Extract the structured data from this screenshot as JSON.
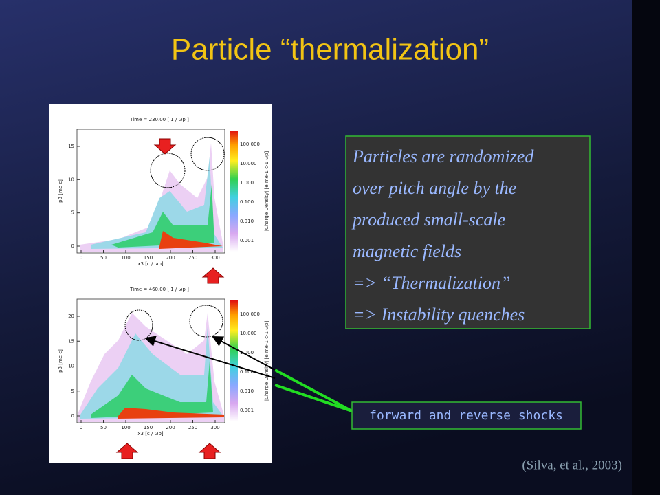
{
  "title": "Particle “thermalization”",
  "text_box": {
    "lines": [
      "Particles are randomized",
      "over pitch angle by the",
      "produced small-scale",
      "magnetic fields",
      "=> “Thermalization”",
      "=> Instability quenches"
    ]
  },
  "callout": "forward and reverse shocks",
  "citation": "(Silva, et al., 2003)",
  "figure": {
    "panels": [
      {
        "time_label": "Time = 230.00 [ 1 / ωp ]",
        "x_label": "x3 [c / ωp]",
        "y_label": "p3 [me c]",
        "colorbar_label": "|Charge Density| [e me-1 c-1 ωp]",
        "xticks": [
          "0",
          "50",
          "100",
          "150",
          "200",
          "250",
          "300"
        ],
        "yticks": [
          "0",
          "5",
          "10",
          "15"
        ],
        "cbar_ticks": [
          "100.000",
          "10.000",
          "1.000",
          "0.100",
          "0.010",
          "0.001"
        ]
      },
      {
        "time_label": "Time = 460.00 [ 1 / ωp ]",
        "x_label": "x3 [c / ωp]",
        "y_label": "p3 [me c]",
        "colorbar_label": "|Charge Density| [e me-1 c-1 ωp]",
        "xticks": [
          "0",
          "50",
          "100",
          "150",
          "200",
          "250",
          "300"
        ],
        "yticks": [
          "0",
          "5",
          "10",
          "15",
          "20"
        ],
        "cbar_ticks": [
          "100.000",
          "10.000",
          "1.000",
          "0.100",
          "0.010",
          "0.001"
        ]
      }
    ]
  }
}
